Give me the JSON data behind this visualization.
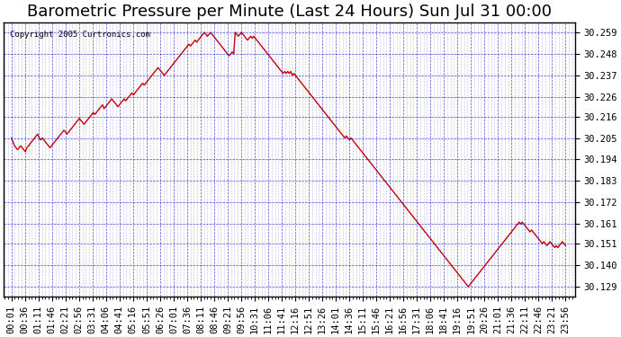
{
  "title": "Barometric Pressure per Minute (Last 24 Hours) Sun Jul 31 00:00",
  "copyright": "Copyright 2005 Curtronics.com",
  "ylabel_right": true,
  "yticks": [
    30.129,
    30.14,
    30.151,
    30.161,
    30.172,
    30.183,
    30.194,
    30.205,
    30.216,
    30.226,
    30.237,
    30.248,
    30.259
  ],
  "ylim": [
    30.124,
    30.264
  ],
  "xtick_labels": [
    "00:01",
    "00:36",
    "01:11",
    "01:46",
    "02:21",
    "02:56",
    "03:31",
    "04:06",
    "04:41",
    "05:16",
    "05:51",
    "06:26",
    "07:01",
    "07:36",
    "08:11",
    "08:46",
    "09:21",
    "09:56",
    "10:31",
    "11:06",
    "11:41",
    "12:16",
    "12:51",
    "13:26",
    "14:01",
    "14:36",
    "15:11",
    "15:46",
    "16:21",
    "16:56",
    "17:31",
    "18:06",
    "18:41",
    "19:16",
    "19:51",
    "20:26",
    "21:01",
    "21:36",
    "22:11",
    "22:46",
    "23:21",
    "23:56"
  ],
  "bg_color": "#ffffff",
  "plot_bg_color": "#ffffff",
  "line_color": "#cc0000",
  "grid_color": "#0000cc",
  "title_fontsize": 13,
  "tick_fontsize": 7.5,
  "line_width": 1.0,
  "pressure_values": [
    30.205,
    30.203,
    30.201,
    30.2,
    30.199,
    30.2,
    30.201,
    30.2,
    30.199,
    30.198,
    30.2,
    30.201,
    30.202,
    30.203,
    30.204,
    30.205,
    30.206,
    30.207,
    30.205,
    30.204,
    30.205,
    30.204,
    30.203,
    30.202,
    30.201,
    30.2,
    30.201,
    30.202,
    30.203,
    30.204,
    30.205,
    30.206,
    30.207,
    30.208,
    30.209,
    30.208,
    30.207,
    30.208,
    30.209,
    30.21,
    30.211,
    30.212,
    30.213,
    30.214,
    30.215,
    30.214,
    30.213,
    30.212,
    30.213,
    30.214,
    30.215,
    30.216,
    30.217,
    30.218,
    30.217,
    30.218,
    30.219,
    30.22,
    30.221,
    30.222,
    30.22,
    30.221,
    30.222,
    30.223,
    30.224,
    30.225,
    30.224,
    30.223,
    30.222,
    30.221,
    30.222,
    30.223,
    30.224,
    30.225,
    30.224,
    30.225,
    30.226,
    30.227,
    30.228,
    30.227,
    30.228,
    30.229,
    30.23,
    30.231,
    30.232,
    30.233,
    30.232,
    30.233,
    30.234,
    30.235,
    30.236,
    30.237,
    30.238,
    30.239,
    30.24,
    30.241,
    30.24,
    30.239,
    30.238,
    30.237,
    30.238,
    30.239,
    30.24,
    30.241,
    30.242,
    30.243,
    30.244,
    30.245,
    30.246,
    30.247,
    30.248,
    30.249,
    30.25,
    30.251,
    30.252,
    30.253,
    30.252,
    30.253,
    30.254,
    30.255,
    30.254,
    30.255,
    30.256,
    30.257,
    30.258,
    30.259,
    30.258,
    30.257,
    30.258,
    30.259,
    30.258,
    30.257,
    30.256,
    30.255,
    30.254,
    30.253,
    30.252,
    30.251,
    30.25,
    30.249,
    30.248,
    30.247,
    30.248,
    30.249,
    30.248,
    30.259,
    30.258,
    30.257,
    30.258,
    30.259,
    30.258,
    30.257,
    30.256,
    30.255,
    30.256,
    30.257,
    30.256,
    30.257,
    30.256,
    30.255,
    30.254,
    30.253,
    30.252,
    30.251,
    30.25,
    30.249,
    30.248,
    30.247,
    30.246,
    30.245,
    30.244,
    30.243,
    30.242,
    30.241,
    30.24,
    30.239,
    30.238,
    30.239,
    30.238,
    30.239,
    30.238,
    30.239,
    30.237,
    30.238,
    30.237,
    30.236,
    30.235,
    30.234,
    30.233,
    30.232,
    30.231,
    30.23,
    30.229,
    30.228,
    30.227,
    30.226,
    30.225,
    30.224,
    30.223,
    30.222,
    30.221,
    30.22,
    30.219,
    30.218,
    30.217,
    30.216,
    30.215,
    30.214,
    30.213,
    30.212,
    30.211,
    30.21,
    30.209,
    30.208,
    30.207,
    30.206,
    30.205,
    30.206,
    30.205,
    30.204,
    30.205,
    30.204,
    30.203,
    30.202,
    30.201,
    30.2,
    30.199,
    30.198,
    30.197,
    30.196,
    30.195,
    30.194,
    30.193,
    30.192,
    30.191,
    30.19,
    30.189,
    30.188,
    30.187,
    30.186,
    30.185,
    30.184,
    30.183,
    30.182,
    30.181,
    30.18,
    30.179,
    30.178,
    30.177,
    30.176,
    30.175,
    30.174,
    30.173,
    30.172,
    30.171,
    30.17,
    30.169,
    30.168,
    30.167,
    30.166,
    30.165,
    30.164,
    30.163,
    30.162,
    30.161,
    30.16,
    30.159,
    30.158,
    30.157,
    30.156,
    30.155,
    30.154,
    30.153,
    30.152,
    30.151,
    30.15,
    30.149,
    30.148,
    30.147,
    30.146,
    30.145,
    30.144,
    30.143,
    30.142,
    30.141,
    30.14,
    30.139,
    30.138,
    30.137,
    30.136,
    30.135,
    30.134,
    30.133,
    30.132,
    30.131,
    30.13,
    30.129,
    30.13,
    30.131,
    30.132,
    30.133,
    30.134,
    30.135,
    30.136,
    30.137,
    30.138,
    30.139,
    30.14,
    30.141,
    30.142,
    30.143,
    30.144,
    30.145,
    30.146,
    30.147,
    30.148,
    30.149,
    30.15,
    30.151,
    30.152,
    30.153,
    30.154,
    30.155,
    30.156,
    30.157,
    30.158,
    30.159,
    30.16,
    30.161,
    30.162,
    30.161,
    30.162,
    30.161,
    30.16,
    30.159,
    30.158,
    30.157,
    30.158,
    30.157,
    30.156,
    30.155,
    30.154,
    30.153,
    30.152,
    30.151,
    30.152,
    30.151,
    30.15,
    30.151,
    30.152,
    30.151,
    30.15,
    30.149,
    30.15,
    30.149,
    30.15,
    30.151,
    30.152,
    30.151,
    30.15
  ]
}
